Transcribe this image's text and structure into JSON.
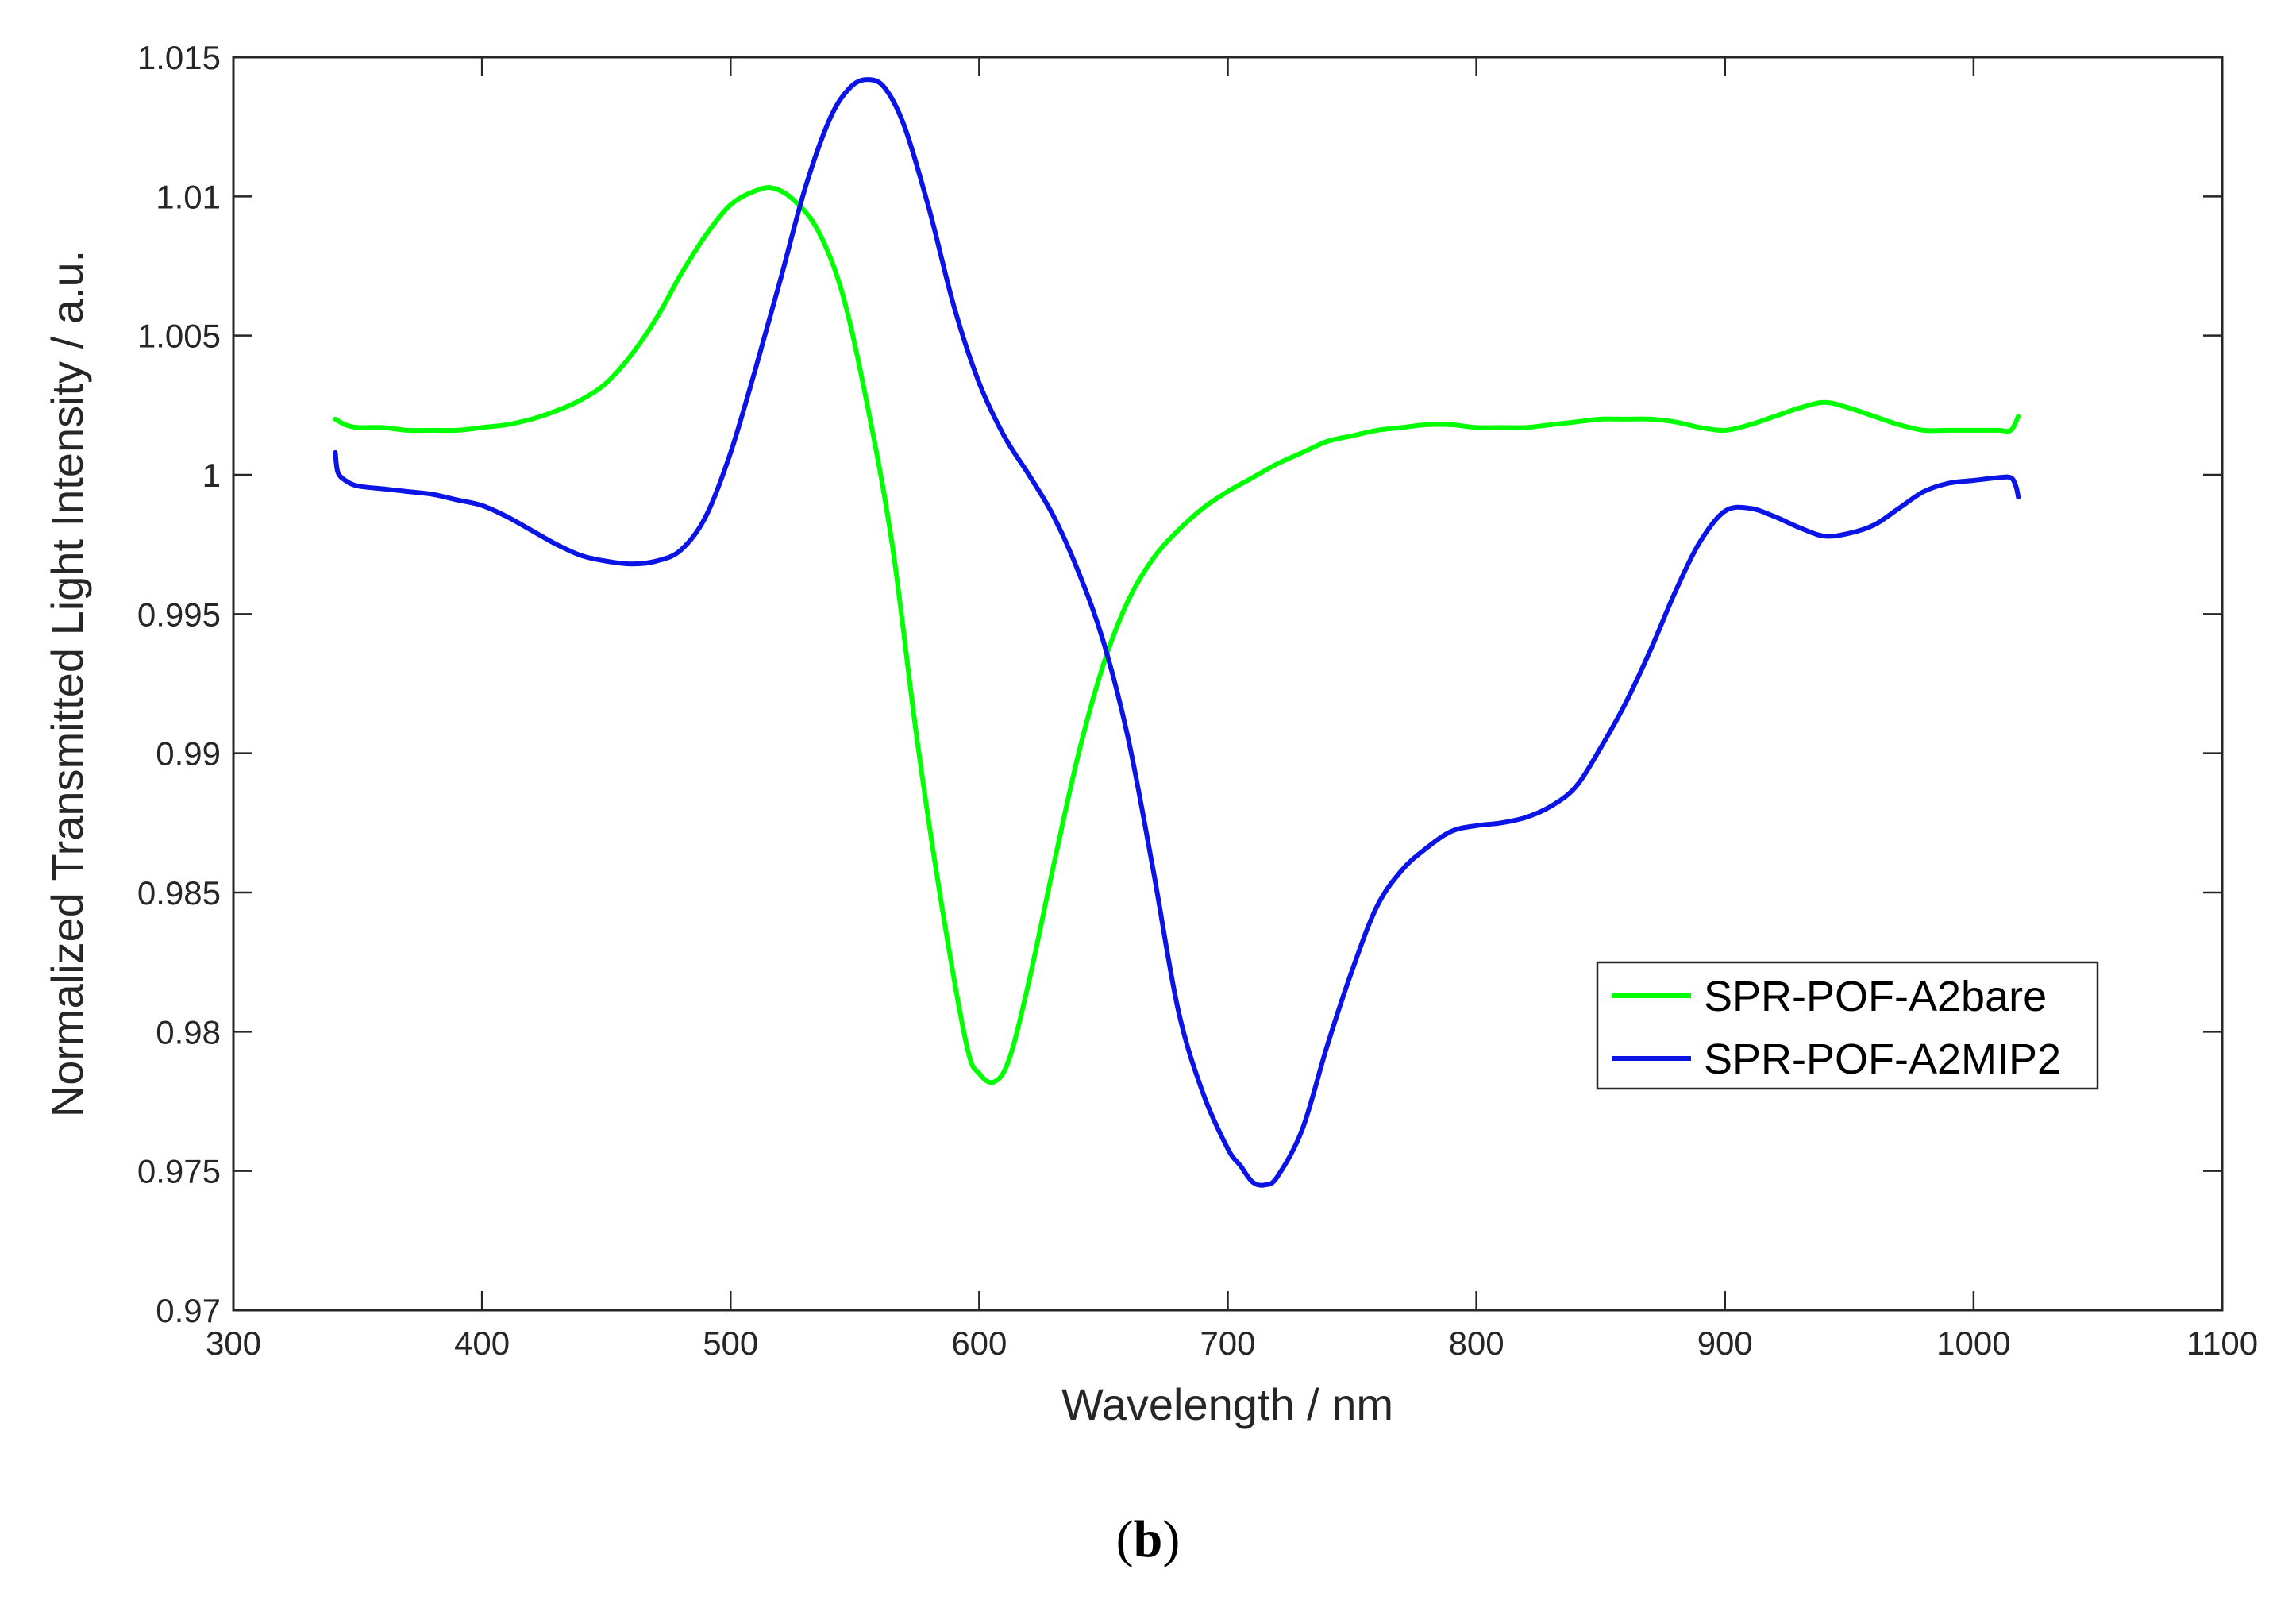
{
  "chart_data": {
    "type": "line",
    "title": "",
    "xlabel": "Wavelength / nm",
    "ylabel": "Normalized Transmitted Light Intensity  / a.u.",
    "xlim": [
      300,
      1100
    ],
    "ylim": [
      0.97,
      1.015
    ],
    "xticks": [
      300,
      400,
      500,
      600,
      700,
      800,
      900,
      1000,
      1100
    ],
    "xtick_labels": [
      "300",
      "400",
      "500",
      "600",
      "700",
      "800",
      "900",
      "1000",
      "1100"
    ],
    "yticks": [
      0.97,
      0.975,
      0.98,
      0.985,
      0.99,
      0.995,
      1.0,
      1.005,
      1.01,
      1.015
    ],
    "ytick_labels": [
      "0.97",
      "0.975",
      "0.98",
      "0.985",
      "0.99",
      "0.995",
      "1",
      "1.005",
      "1.01",
      "1.015"
    ],
    "grid": false,
    "legend_position": "right-middle",
    "series": [
      {
        "name": "SPR-POF-A2bare",
        "color": "#00ff00",
        "x": [
          341,
          345,
          350,
          360,
          370,
          380,
          390,
          400,
          410,
          420,
          430,
          440,
          450,
          460,
          470,
          480,
          490,
          500,
          510,
          517,
          525,
          535,
          545,
          555,
          565,
          575,
          585,
          595,
          600,
          606,
          612,
          620,
          630,
          640,
          650,
          660,
          670,
          680,
          690,
          700,
          710,
          720,
          730,
          740,
          750,
          760,
          770,
          780,
          790,
          800,
          810,
          820,
          830,
          840,
          850,
          860,
          870,
          880,
          890,
          900,
          910,
          920,
          930,
          940,
          950,
          960,
          970,
          980,
          990,
          1000,
          1010,
          1015,
          1018
        ],
        "y": [
          1.002,
          1.0018,
          1.0017,
          1.0017,
          1.0016,
          1.0016,
          1.0016,
          1.0017,
          1.0018,
          1.002,
          1.0023,
          1.0027,
          1.0033,
          1.0043,
          1.0056,
          1.0072,
          1.0086,
          1.0097,
          1.0102,
          1.0103,
          1.0099,
          1.0088,
          1.0065,
          1.0025,
          0.9975,
          0.9905,
          0.9845,
          0.9795,
          0.9785,
          0.9782,
          0.979,
          0.9818,
          0.986,
          0.99,
          0.9932,
          0.9955,
          0.997,
          0.998,
          0.9988,
          0.9994,
          0.9999,
          1.0004,
          1.0008,
          1.0012,
          1.0014,
          1.0016,
          1.0017,
          1.0018,
          1.0018,
          1.0017,
          1.0017,
          1.0017,
          1.0018,
          1.0019,
          1.002,
          1.002,
          1.002,
          1.0019,
          1.0017,
          1.0016,
          1.0018,
          1.0021,
          1.0024,
          1.0026,
          1.0024,
          1.0021,
          1.0018,
          1.0016,
          1.0016,
          1.0016,
          1.0016,
          1.0016,
          1.0021
        ]
      },
      {
        "name": "SPR-POF-A2MIP2",
        "color": "#0a14e6",
        "x": [
          341,
          342,
          345,
          350,
          360,
          370,
          380,
          390,
          400,
          410,
          420,
          430,
          440,
          450,
          460,
          470,
          480,
          490,
          500,
          510,
          520,
          530,
          540,
          548,
          555,
          562,
          570,
          580,
          590,
          600,
          610,
          620,
          630,
          640,
          650,
          660,
          670,
          680,
          690,
          700,
          705,
          710,
          715,
          720,
          730,
          740,
          750,
          760,
          770,
          780,
          790,
          800,
          810,
          820,
          830,
          840,
          850,
          860,
          870,
          880,
          890,
          900,
          910,
          920,
          930,
          940,
          950,
          960,
          970,
          980,
          990,
          1000,
          1010,
          1015,
          1017,
          1018
        ],
        "y": [
          1.0008,
          1.0001,
          0.9998,
          0.9996,
          0.9995,
          0.9994,
          0.9993,
          0.9991,
          0.9989,
          0.9985,
          0.998,
          0.9975,
          0.9971,
          0.9969,
          0.9968,
          0.9969,
          0.9973,
          0.9985,
          1.0008,
          1.0038,
          1.007,
          1.0103,
          1.0128,
          1.0139,
          1.0142,
          1.0139,
          1.0125,
          1.0095,
          1.006,
          1.0033,
          1.0014,
          1.0,
          0.9985,
          0.9965,
          0.994,
          0.9905,
          0.9858,
          0.9808,
          0.9778,
          0.9758,
          0.9752,
          0.9746,
          0.9745,
          0.9748,
          0.9765,
          0.9795,
          0.9822,
          0.9845,
          0.9858,
          0.9866,
          0.9872,
          0.9874,
          0.9875,
          0.9877,
          0.9881,
          0.9888,
          0.9902,
          0.9918,
          0.9937,
          0.9958,
          0.9976,
          0.9987,
          0.9988,
          0.9985,
          0.9981,
          0.9978,
          0.9979,
          0.9982,
          0.9988,
          0.9994,
          0.9997,
          0.9998,
          0.9999,
          0.9999,
          0.9996,
          0.9992
        ]
      }
    ]
  },
  "caption": {
    "open": "(",
    "letter": "b",
    "close": ")"
  }
}
